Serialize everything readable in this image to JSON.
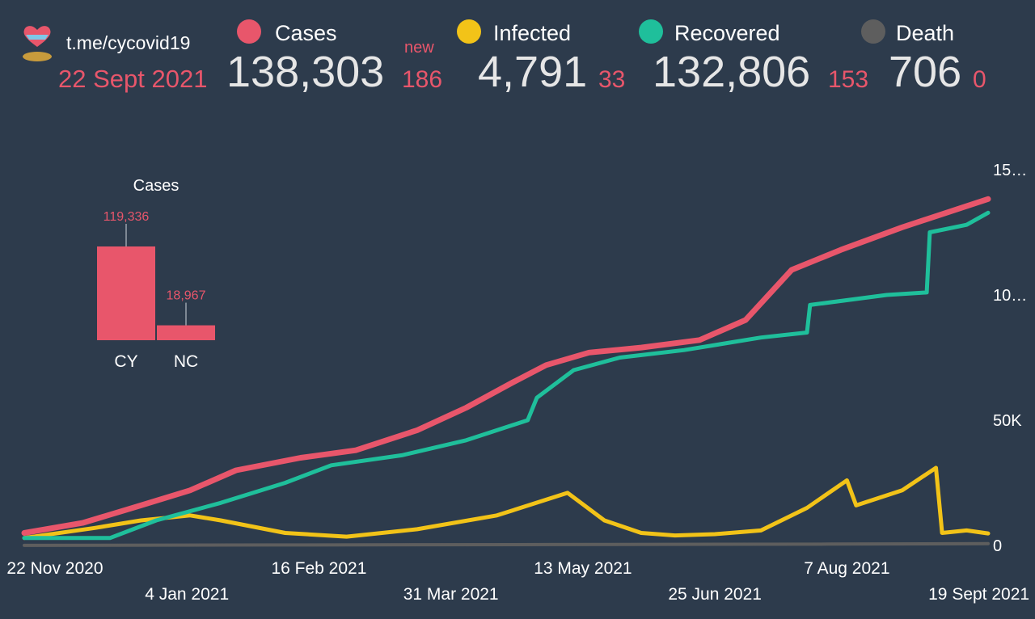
{
  "header": {
    "channel": "t.me/cycovid19",
    "date": "22 Sept 2021",
    "new_label": "new",
    "stats": [
      {
        "label": "Cases",
        "color": "#e8566b",
        "value": "138,303",
        "delta": "186"
      },
      {
        "label": "Infected",
        "color": "#f2c318",
        "value": "4,791",
        "delta": "33"
      },
      {
        "label": "Recovered",
        "color": "#1fbf9b",
        "value": "132,806",
        "delta": "153"
      },
      {
        "label": "Death",
        "color": "#5e5e5e",
        "value": "706",
        "delta": "0"
      }
    ]
  },
  "chart_data": [
    {
      "type": "line",
      "xlabel": "",
      "ylabel": "",
      "x_tick_labels": [
        "22 Nov 2020",
        "4 Jan 2021",
        "16 Feb 2021",
        "31 Mar 2021",
        "13 May 2021",
        "25 Jun 2021",
        "7 Aug 2021",
        "19 Sept 2021"
      ],
      "y_tick_labels": [
        "0",
        "50K",
        "10…",
        "15…"
      ],
      "ylim": [
        0,
        150000
      ],
      "x_range": [
        "2020-11-12",
        "2021-09-22"
      ],
      "grid": false,
      "series": [
        {
          "name": "Cases",
          "color": "#e8566b",
          "points": [
            [
              "2020-11-12",
              5000
            ],
            [
              "2020-12-01",
              9000
            ],
            [
              "2020-12-20",
              16000
            ],
            [
              "2021-01-05",
              22000
            ],
            [
              "2021-01-20",
              30000
            ],
            [
              "2021-02-10",
              35000
            ],
            [
              "2021-02-28",
              38000
            ],
            [
              "2021-03-20",
              46000
            ],
            [
              "2021-04-05",
              55000
            ],
            [
              "2021-04-20",
              65000
            ],
            [
              "2021-05-01",
              72000
            ],
            [
              "2021-05-15",
              77000
            ],
            [
              "2021-06-01",
              79000
            ],
            [
              "2021-06-20",
              82000
            ],
            [
              "2021-07-05",
              90000
            ],
            [
              "2021-07-20",
              110000
            ],
            [
              "2021-08-05",
              118000
            ],
            [
              "2021-08-25",
              127000
            ],
            [
              "2021-09-22",
              138303
            ]
          ]
        },
        {
          "name": "Recovered",
          "color": "#1fbf9b",
          "points": [
            [
              "2020-11-12",
              3000
            ],
            [
              "2020-12-10",
              3000
            ],
            [
              "2020-12-25",
              10000
            ],
            [
              "2021-01-15",
              17000
            ],
            [
              "2021-02-05",
              25000
            ],
            [
              "2021-02-20",
              32000
            ],
            [
              "2021-03-15",
              36000
            ],
            [
              "2021-04-05",
              42000
            ],
            [
              "2021-04-25",
              50000
            ],
            [
              "2021-04-28",
              59000
            ],
            [
              "2021-05-10",
              70000
            ],
            [
              "2021-05-25",
              75000
            ],
            [
              "2021-06-15",
              78000
            ],
            [
              "2021-07-10",
              83000
            ],
            [
              "2021-07-25",
              85000
            ],
            [
              "2021-07-26",
              96000
            ],
            [
              "2021-08-20",
              100000
            ],
            [
              "2021-09-02",
              101000
            ],
            [
              "2021-09-03",
              125000
            ],
            [
              "2021-09-15",
              128000
            ],
            [
              "2021-09-22",
              132806
            ]
          ]
        },
        {
          "name": "Infected",
          "color": "#f2c318",
          "points": [
            [
              "2020-11-12",
              3000
            ],
            [
              "2020-12-05",
              7000
            ],
            [
              "2020-12-20",
              10000
            ],
            [
              "2021-01-05",
              12000
            ],
            [
              "2021-01-15",
              10000
            ],
            [
              "2021-02-05",
              5000
            ],
            [
              "2021-02-25",
              3500
            ],
            [
              "2021-03-20",
              6500
            ],
            [
              "2021-04-15",
              12000
            ],
            [
              "2021-05-08",
              21000
            ],
            [
              "2021-05-20",
              10000
            ],
            [
              "2021-06-01",
              5000
            ],
            [
              "2021-06-12",
              4000
            ],
            [
              "2021-06-25",
              4500
            ],
            [
              "2021-07-10",
              6000
            ],
            [
              "2021-07-25",
              15000
            ],
            [
              "2021-08-07",
              26000
            ],
            [
              "2021-08-10",
              16000
            ],
            [
              "2021-08-25",
              22000
            ],
            [
              "2021-09-05",
              31000
            ],
            [
              "2021-09-07",
              5000
            ],
            [
              "2021-09-15",
              6000
            ],
            [
              "2021-09-22",
              4791
            ]
          ]
        },
        {
          "name": "Death",
          "color": "#5e5e5e",
          "points": [
            [
              "2020-11-12",
              30
            ],
            [
              "2021-02-01",
              200
            ],
            [
              "2021-05-01",
              360
            ],
            [
              "2021-08-01",
              550
            ],
            [
              "2021-09-22",
              706
            ]
          ]
        }
      ]
    },
    {
      "type": "bar",
      "title": "Cases",
      "categories": [
        "CY",
        "NC"
      ],
      "values": [
        119336,
        18967
      ],
      "value_labels": [
        "119,336",
        "18,967"
      ],
      "color": "#e8566b"
    }
  ]
}
